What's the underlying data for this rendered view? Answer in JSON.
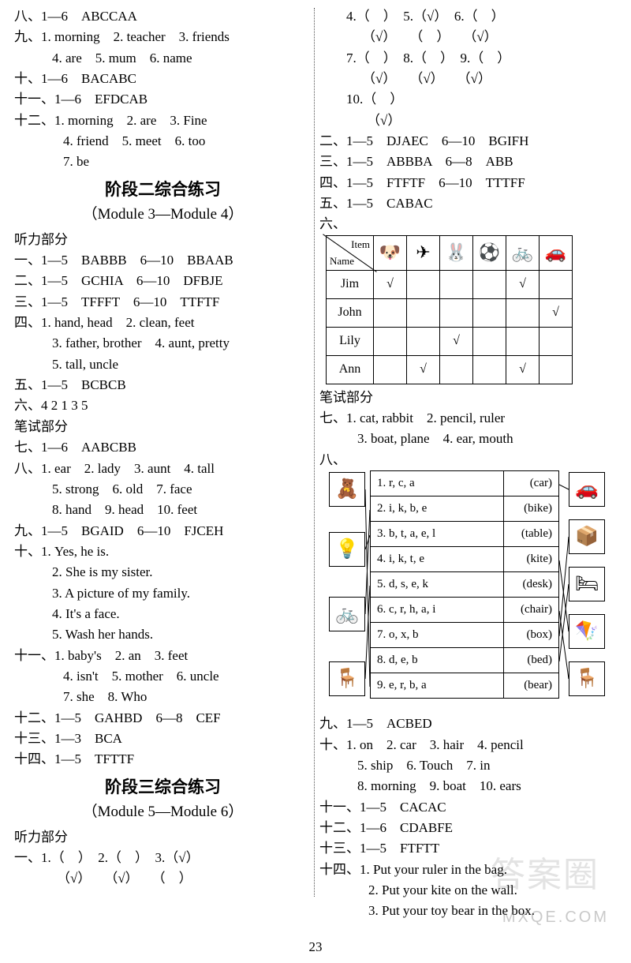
{
  "left": {
    "r1": "八、1—6　ABCCAA",
    "r2": "九、1. morning　2. teacher　3. friends",
    "r2b": "4. are　5. mum　6. name",
    "r3": "十、1—6　BACABC",
    "r4": "十一、1—6　EFDCAB",
    "r5": "十二、1. morning　2. are　3. Fine",
    "r5b": "4. friend　5. meet　6. too",
    "r5c": "7. be",
    "t2": "阶段二综合练习",
    "s2": "（Module 3—Module 4）",
    "lp": "听力部分",
    "l1": "一、1—5　BABBB　6—10　BBAAB",
    "l2": "二、1—5　GCHIA　6—10　DFBJE",
    "l3": "三、1—5　TFFFT　6—10　TTFTF",
    "l4": "四、1. hand, head　2. clean, feet",
    "l4b": "3. father, brother　4. aunt, pretty",
    "l4c": "5. tall, uncle",
    "l5": "五、1—5　BCBCB",
    "l6": "六、4 2 1 3 5",
    "wp": "笔试部分",
    "w7": "七、1—6　AABCBB",
    "w8": "八、1. ear　2. lady　3. aunt　4. tall",
    "w8b": "5. strong　6. old　7. face",
    "w8c": "8. hand　9. head　10. feet",
    "w9": "九、1—5　BGAID　6—10　FJCEH",
    "w10": "十、1. Yes, he is.",
    "w10b": "2. She is my sister.",
    "w10c": "3. A picture of my family.",
    "w10d": "4. It's a face.",
    "w10e": "5. Wash her hands.",
    "w11": "十一、1. baby's　2. an　3. feet",
    "w11b": "4. isn't　5. mother　6. uncle",
    "w11c": "7. she　8. Who",
    "w12": "十二、1—5　GAHBD　6—8　CEF",
    "w13": "十三、1—3　BCA",
    "w14": "十四、1—5　TFTTF",
    "t3": "阶段三综合练习",
    "s3": "（Module 5—Module 6）",
    "lp3": "听力部分",
    "p1a": "一、1.（　）　2.（　）　3.（√）",
    "p1b": "（√）　　（√）　　（　）"
  },
  "right": {
    "p4": "4.（　）　5.（√）　6.（　）",
    "p4b": "（√）　　（　）　　（√）",
    "p7": "7.（　）　8.（　）　9.（　）",
    "p7b": "（√）　　（√）　　（√）",
    "p10": "10.（　）",
    "p10b": "（√）",
    "r2": "二、1—5　DJAEC　6—10　BGIFH",
    "r3": "三、1—5　ABBBA　6—8　ABB",
    "r4": "四、1—5　FTFTF　6—10　TTTFF",
    "r5": "五、1—5　CABAC",
    "r6": "六、",
    "tbl": {
      "headers": [
        "Item",
        "Name"
      ],
      "cols_icons": [
        "dog",
        "plane",
        "rabbit",
        "ball",
        "bike",
        "car"
      ],
      "rows": [
        {
          "name": "Jim",
          "cells": [
            "√",
            "",
            "",
            "",
            "√",
            ""
          ]
        },
        {
          "name": "John",
          "cells": [
            "",
            "",
            "",
            "",
            "",
            "√"
          ]
        },
        {
          "name": "Lily",
          "cells": [
            "",
            "",
            "√",
            "",
            "",
            ""
          ]
        },
        {
          "name": "Ann",
          "cells": [
            "",
            "√",
            "",
            "",
            "√",
            ""
          ]
        }
      ]
    },
    "wp": "笔试部分",
    "w7": "七、1. cat, rabbit　2. pencil, ruler",
    "w7b": "3. boat, plane　4. ear, mouth",
    "w8": "八、",
    "match": {
      "left_icons": [
        "bear",
        "lamp",
        "bike",
        "desk"
      ],
      "right_icons": [
        "car",
        "box",
        "bed",
        "kite",
        "chair"
      ],
      "rows": [
        {
          "n": "1.",
          "t": "r, c, a",
          "w": "(car)"
        },
        {
          "n": "2.",
          "t": "i, k, b, e",
          "w": "(bike)"
        },
        {
          "n": "3.",
          "t": "b, t, a, e, l",
          "w": "(table)"
        },
        {
          "n": "4.",
          "t": "i, k, t, e",
          "w": "(kite)"
        },
        {
          "n": "5.",
          "t": "d, s, e, k",
          "w": "(desk)"
        },
        {
          "n": "6.",
          "t": "c, r, h, a, i",
          "w": "(chair)"
        },
        {
          "n": "7.",
          "t": "o, x, b",
          "w": "(box)"
        },
        {
          "n": "8.",
          "t": "d, e, b",
          "w": "(bed)"
        },
        {
          "n": "9.",
          "t": "e, r, b, a",
          "w": "(bear)"
        }
      ],
      "left_map": [
        {
          "from": 0,
          "to": 8
        },
        {
          "from": 1,
          "to": 2
        },
        {
          "from": 2,
          "to": 1
        },
        {
          "from": 3,
          "to": 4
        }
      ],
      "right_map": [
        {
          "from": 0,
          "to": 0
        },
        {
          "from": 1,
          "to": 6
        },
        {
          "from": 2,
          "to": 7
        },
        {
          "from": 3,
          "to": 3
        },
        {
          "from": 4,
          "to": 5
        }
      ]
    },
    "w9": "九、1—5　ACBED",
    "w10": "十、1. on　2. car　3. hair　4. pencil",
    "w10b": "5. ship　6. Touch　7. in",
    "w10c": "8. morning　9. boat　10. ears",
    "w11": "十一、1—5　CACAC",
    "w12": "十二、1—6　CDABFE",
    "w13": "十三、1—5　FTFTT",
    "w14": "十四、1. Put your ruler in the bag.",
    "w14b": "2. Put your kite on the wall.",
    "w14c": "3. Put your toy bear in the box."
  },
  "page_num": "23",
  "wm_text": "答案圈",
  "wm2_text": "MXQE.COM",
  "icons": {
    "dog": "🐶",
    "plane": "✈",
    "rabbit": "🐰",
    "ball": "⚽",
    "bike": "🚲",
    "car": "🚗",
    "bear": "🧸",
    "lamp": "💡",
    "desk": "🪑",
    "box": "📦",
    "bed": "🛏",
    "kite": "🪁",
    "chair": "🪑"
  }
}
